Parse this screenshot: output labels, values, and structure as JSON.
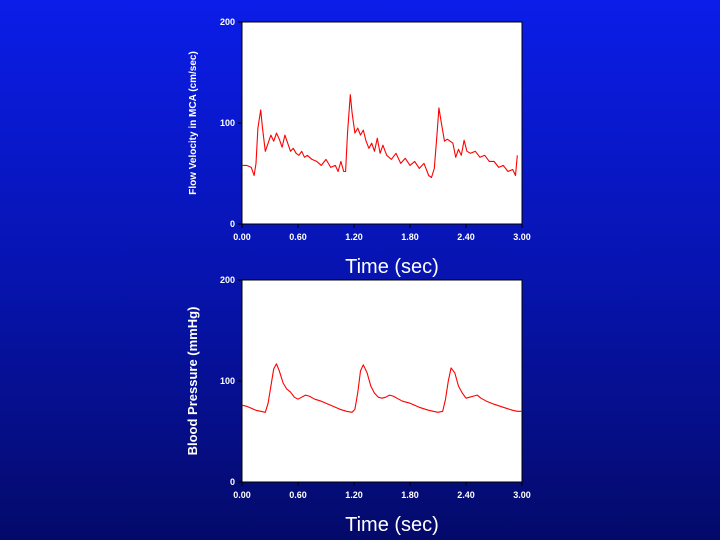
{
  "chart_data": [
    {
      "type": "line",
      "xlabel": "Time (sec)",
      "ylabel": "Flow Velocity in MCA (cm/sec)",
      "xlim": [
        0,
        3
      ],
      "ylim": [
        0,
        200
      ],
      "x_ticks": [
        "0.00",
        "0.60",
        "1.20",
        "1.80",
        "2.40",
        "3.00"
      ],
      "y_ticks": [
        "0",
        "100",
        "200"
      ],
      "line_color": "#ff0000",
      "series": [
        {
          "x": [
            0.0,
            0.05,
            0.1,
            0.13,
            0.15,
            0.17,
            0.2,
            0.22,
            0.25,
            0.28,
            0.31,
            0.34,
            0.37,
            0.4,
            0.43,
            0.46,
            0.49,
            0.52,
            0.55,
            0.58,
            0.61,
            0.64,
            0.67,
            0.7,
            0.75,
            0.8,
            0.85,
            0.9,
            0.95,
            1.0,
            1.03,
            1.06,
            1.09,
            1.11,
            1.13,
            1.16,
            1.18,
            1.21,
            1.24,
            1.27,
            1.3,
            1.33,
            1.36,
            1.39,
            1.42,
            1.45,
            1.48,
            1.51,
            1.55,
            1.6,
            1.65,
            1.7,
            1.75,
            1.8,
            1.85,
            1.9,
            1.95,
            2.0,
            2.03,
            2.06,
            2.09,
            2.11,
            2.14,
            2.17,
            2.2,
            2.23,
            2.26,
            2.29,
            2.32,
            2.35,
            2.38,
            2.41,
            2.45,
            2.5,
            2.55,
            2.6,
            2.65,
            2.7,
            2.75,
            2.8,
            2.85,
            2.9,
            2.93,
            2.95
          ],
          "y": [
            58,
            58,
            56,
            48,
            60,
            95,
            113,
            95,
            72,
            80,
            88,
            82,
            90,
            84,
            76,
            88,
            80,
            72,
            75,
            70,
            68,
            72,
            66,
            68,
            64,
            62,
            58,
            64,
            56,
            58,
            52,
            62,
            52,
            52,
            90,
            128,
            110,
            90,
            95,
            88,
            93,
            82,
            75,
            80,
            72,
            85,
            70,
            78,
            68,
            64,
            70,
            60,
            65,
            58,
            62,
            55,
            60,
            48,
            46,
            55,
            90,
            115,
            98,
            82,
            84,
            82,
            80,
            66,
            74,
            68,
            83,
            72,
            70,
            72,
            66,
            68,
            62,
            62,
            56,
            58,
            52,
            54,
            48,
            68
          ]
        }
      ]
    },
    {
      "type": "line",
      "xlabel": "Time (sec)",
      "ylabel": "Blood Pressure (mmHg)",
      "xlim": [
        0,
        3
      ],
      "ylim": [
        0,
        200
      ],
      "x_ticks": [
        "0.00",
        "0.60",
        "1.20",
        "1.80",
        "2.40",
        "3.00"
      ],
      "y_ticks": [
        "0",
        "100",
        "200"
      ],
      "line_color": "#ff0000",
      "series": [
        {
          "x": [
            0.0,
            0.05,
            0.1,
            0.15,
            0.2,
            0.25,
            0.28,
            0.31,
            0.34,
            0.37,
            0.4,
            0.44,
            0.48,
            0.52,
            0.56,
            0.6,
            0.64,
            0.68,
            0.72,
            0.78,
            0.85,
            0.95,
            1.05,
            1.12,
            1.18,
            1.21,
            1.24,
            1.27,
            1.3,
            1.34,
            1.38,
            1.42,
            1.46,
            1.5,
            1.54,
            1.58,
            1.62,
            1.66,
            1.72,
            1.8,
            1.9,
            2.0,
            2.1,
            2.15,
            2.18,
            2.21,
            2.24,
            2.28,
            2.32,
            2.36,
            2.4,
            2.44,
            2.48,
            2.52,
            2.56,
            2.62,
            2.7,
            2.8,
            2.9,
            2.95,
            3.0
          ],
          "y": [
            76,
            75,
            73,
            71,
            70,
            69,
            78,
            95,
            112,
            117,
            110,
            98,
            92,
            89,
            84,
            82,
            84,
            86,
            85,
            82,
            80,
            76,
            72,
            70,
            69,
            72,
            88,
            110,
            116,
            108,
            95,
            88,
            84,
            83,
            84,
            86,
            85,
            83,
            80,
            78,
            74,
            71,
            69,
            70,
            82,
            100,
            113,
            108,
            95,
            88,
            83,
            84,
            85,
            86,
            83,
            80,
            77,
            74,
            71,
            70,
            70
          ]
        }
      ]
    }
  ]
}
